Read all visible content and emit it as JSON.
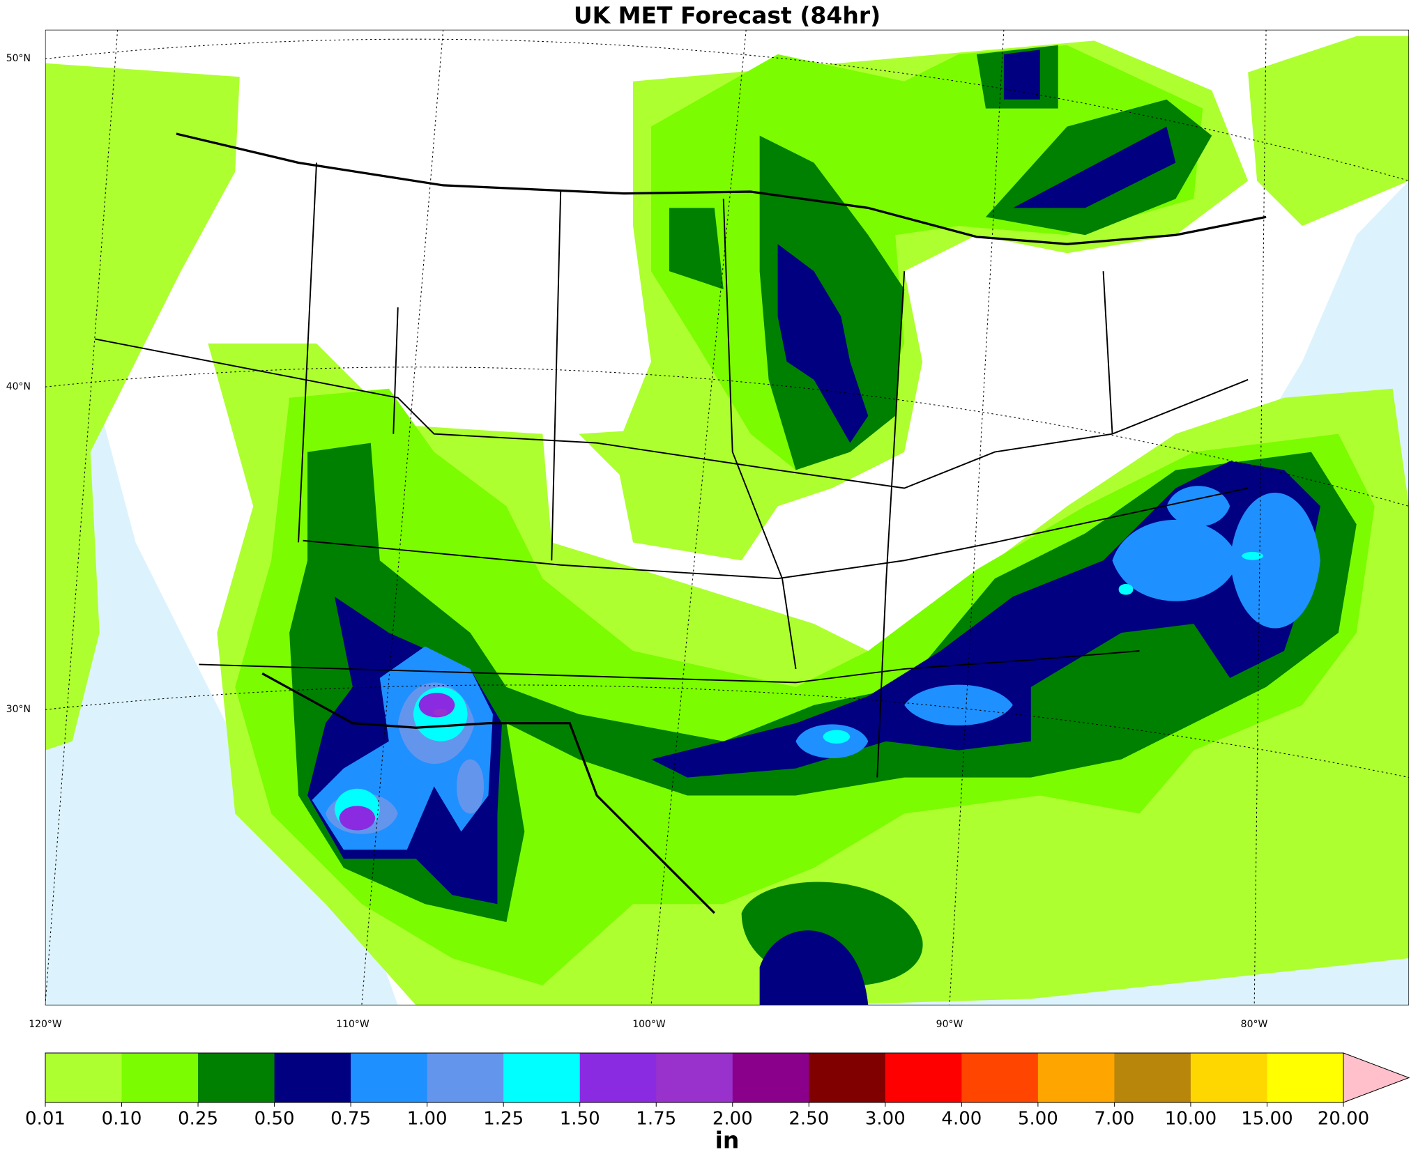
{
  "title": "UK MET Forecast (84hr)",
  "map": {
    "lat_labels": [
      "50°N",
      "40°N",
      "30°N"
    ],
    "lon_labels": [
      "120°W",
      "110°W",
      "100°W",
      "90°W",
      "80°W"
    ]
  },
  "colorbar": {
    "ticks": [
      0.01,
      {
        "value": 0.1,
        "label": "0.10"
      },
      0.25,
      {
        "value": 0.5,
        "label": "0.50"
      },
      0.75,
      {
        "value": 1,
        "label": "1.00"
      },
      1.25,
      {
        "value": 1.5,
        "label": "1.50"
      },
      1.75,
      {
        "value": 2,
        "label": "2.00"
      },
      {
        "value": 2.5,
        "label": "2.50"
      },
      {
        "value": 3,
        "label": "3.00"
      },
      {
        "value": 4,
        "label": "4.00"
      },
      {
        "value": 5,
        "label": "5.00"
      },
      {
        "value": 7,
        "label": "7.00"
      },
      {
        "value": 10,
        "label": "10.00"
      },
      {
        "value": 15,
        "label": "15.00"
      },
      {
        "value": 20,
        "label": "20.00"
      }
    ],
    "colors": [
      "#adff2f",
      "#7cfc00",
      "#008000",
      "#000080",
      "#1e90ff",
      "#6495ed",
      "#00ffff",
      "#8a2be2",
      "#9932cc",
      "#8b008b",
      "#800000",
      "#ff0000",
      "#ff4500",
      "#ffa500",
      "#b8860b",
      "#ffd700",
      "#ffff00"
    ],
    "extend_color": "#ffc0cb",
    "label": "in"
  }
}
